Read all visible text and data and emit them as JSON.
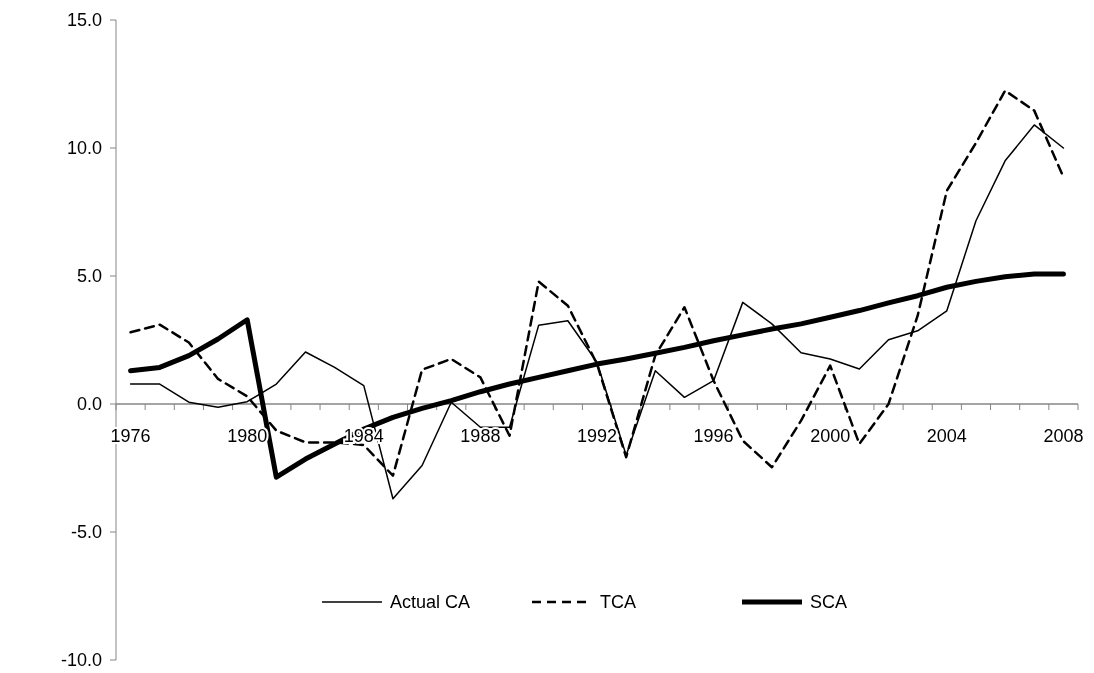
{
  "chart_data": {
    "type": "line",
    "xlim": [
      1975.5,
      2008.5
    ],
    "xticks": [
      1976,
      1980,
      1984,
      1988,
      1992,
      1996,
      2000,
      2004,
      2008
    ],
    "x": [
      1976,
      1977,
      1978,
      1979,
      1980,
      1981,
      1982,
      1983,
      1984,
      1985,
      1986,
      1987,
      1988,
      1989,
      1990,
      1991,
      1992,
      1993,
      1994,
      1995,
      1996,
      1997,
      1998,
      1999,
      2000,
      2001,
      2002,
      2003,
      2004,
      2005,
      2006,
      2007,
      2008
    ],
    "ylim": [
      -10,
      15
    ],
    "yticks": [
      {
        "value": -10,
        "label": "-10.0"
      },
      {
        "value": -5,
        "label": "-5.0"
      },
      {
        "value": 0,
        "label": "0.0"
      },
      {
        "value": 5,
        "label": "5.0"
      },
      {
        "value": 10,
        "label": "10.0"
      },
      {
        "value": 15,
        "label": "15.0"
      }
    ],
    "grid": false,
    "legend": "bottom",
    "marker": "none",
    "series": [
      {
        "name": "Actual CA",
        "color": "#000000",
        "line_style": "solid",
        "values": [
          0.78,
          0.78,
          0.07,
          -0.13,
          0.09,
          0.78,
          2.03,
          1.43,
          0.72,
          -3.7,
          -2.4,
          0.07,
          -0.91,
          -0.91,
          3.08,
          3.25,
          1.63,
          -2.0,
          1.3,
          0.26,
          0.91,
          3.97,
          3.13,
          2.0,
          1.76,
          1.37,
          2.51,
          2.86,
          3.64,
          7.16,
          9.5,
          10.9,
          10.0
        ]
      },
      {
        "name": "TCA",
        "color": "#000000",
        "line_style": "dashed",
        "values": [
          2.8,
          3.1,
          2.4,
          0.98,
          0.3,
          -1.04,
          -1.5,
          -1.5,
          -1.6,
          -2.8,
          1.34,
          1.76,
          1.04,
          -1.24,
          4.78,
          3.84,
          1.56,
          -2.08,
          1.9,
          3.78,
          0.91,
          -1.43,
          -2.47,
          -0.65,
          1.5,
          -1.56,
          0.0,
          3.45,
          8.33,
          10.2,
          12.24,
          11.46,
          8.86
        ]
      },
      {
        "name": "SCA",
        "color": "#000000",
        "line_style": "solid",
        "values": [
          1.3,
          1.43,
          1.89,
          2.54,
          3.29,
          -2.86,
          -2.15,
          -1.56,
          -0.98,
          -0.52,
          -0.17,
          0.13,
          0.48,
          0.78,
          1.04,
          1.3,
          1.56,
          1.76,
          1.98,
          2.21,
          2.47,
          2.7,
          2.93,
          3.13,
          3.39,
          3.65,
          3.95,
          4.23,
          4.56,
          4.79,
          4.97,
          5.08,
          5.08
        ]
      }
    ]
  }
}
